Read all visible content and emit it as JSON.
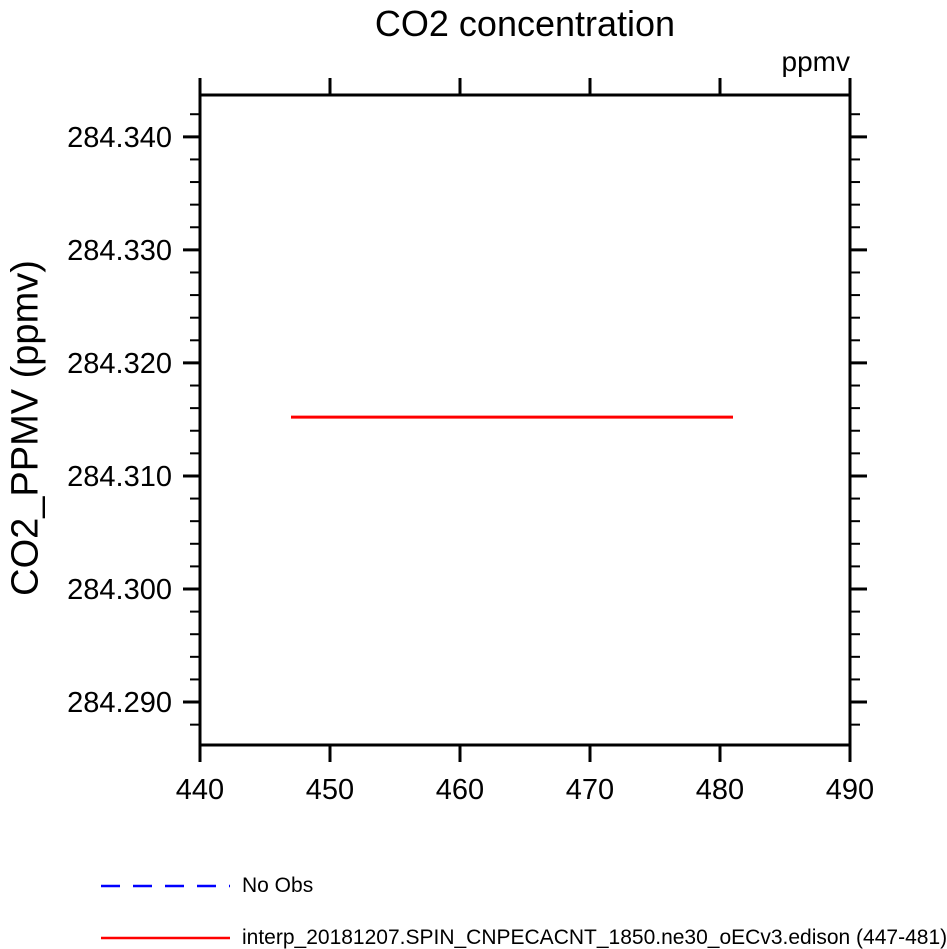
{
  "title": "CO2 concentration",
  "top_units_label": "ppmv",
  "chart_data": {
    "type": "line",
    "title": "CO2 concentration",
    "xlabel": "",
    "ylabel": "CO2_PPMV  (ppmv)",
    "top_right_units": "ppmv",
    "xlim": [
      440,
      490
    ],
    "ylim": [
      284.2862,
      284.3437
    ],
    "xticks": [
      440,
      450,
      460,
      470,
      480,
      490
    ],
    "xtick_labels": [
      "440",
      "450",
      "460",
      "470",
      "480",
      "490"
    ],
    "yticks": [
      284.29,
      284.3,
      284.31,
      284.32,
      284.33,
      284.34
    ],
    "ytick_labels": [
      "284.290",
      "284.300",
      "284.310",
      "284.320",
      "284.330",
      "284.340"
    ],
    "y_minor_step": 0.002,
    "grid": false,
    "background": "#ffffff",
    "axis_color": "#000000",
    "series": [
      {
        "name": "No Obs",
        "color": "#0000ff",
        "line_style": "dashed",
        "x": [],
        "y": []
      },
      {
        "name": "interp_20181207.SPIN_CNPECACNT_1850.ne30_oECv3.edison (447-481)",
        "color": "#ff0000",
        "line_style": "solid",
        "x": [
          447,
          481
        ],
        "y": [
          284.3152,
          284.3152
        ]
      }
    ],
    "legend_position": "below-plot-left"
  },
  "legend": {
    "items": [
      {
        "label": "No Obs",
        "color": "#0000ff",
        "dash": "19 13"
      },
      {
        "label": "interp_20181207.SPIN_CNPECACNT_1850.ne30_oECv3.edison (447-481)",
        "color": "#ff0000",
        "dash": "none"
      }
    ]
  }
}
